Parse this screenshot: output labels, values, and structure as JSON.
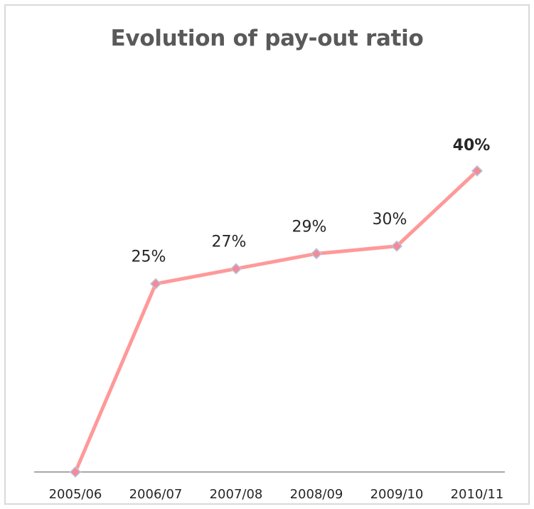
{
  "colors": {
    "line": "#ff9999",
    "marker": "#f28b96",
    "marker_stroke": "#b9c4e0",
    "axis": "#8c8c8c",
    "text": "#262626",
    "title": "#595959"
  },
  "chart_data": {
    "type": "line",
    "title": "Evolution of pay-out ratio",
    "xlabel": "",
    "ylabel": "",
    "categories": [
      "2005/06",
      "2006/07",
      "2007/08",
      "2008/09",
      "2009/10",
      "2010/11"
    ],
    "values": [
      0,
      25,
      27,
      29,
      30,
      40
    ],
    "data_labels": [
      "",
      "25%",
      "27%",
      "29%",
      "30%",
      "40%"
    ],
    "bold_label_index": 5,
    "ylim": [
      0,
      40
    ],
    "grid": false,
    "legend": "none"
  }
}
